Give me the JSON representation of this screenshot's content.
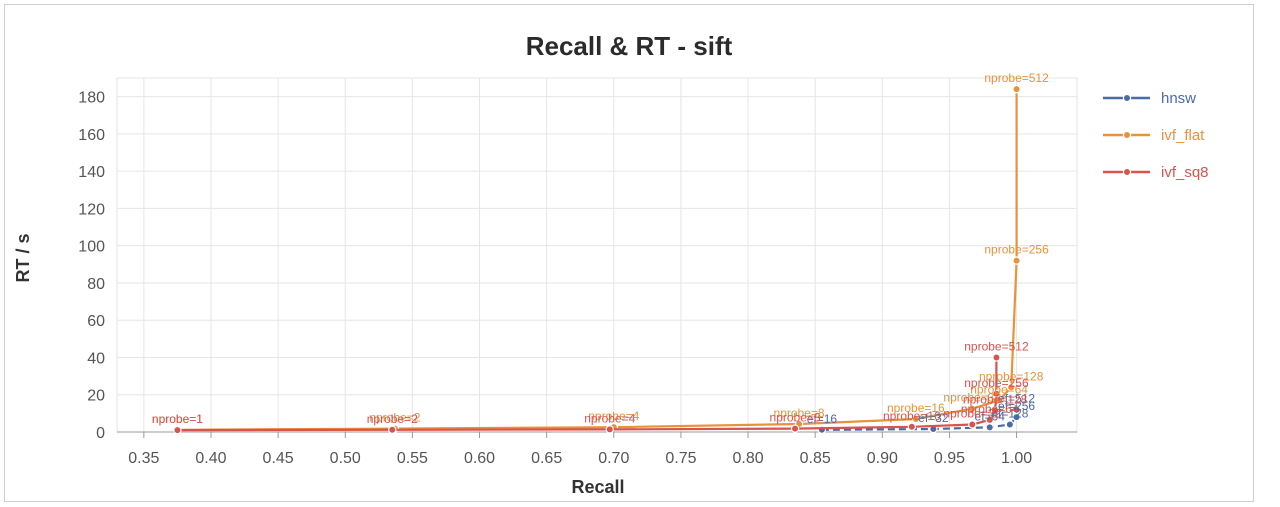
{
  "chart_data": {
    "type": "line",
    "title": "Recall & RT - sift",
    "xlabel": "Recall",
    "ylabel": "RT / s",
    "xlim": [
      0.33,
      1.045
    ],
    "ylim": [
      0,
      190
    ],
    "x_ticks": [
      "0.35",
      "0.40",
      "0.45",
      "0.50",
      "0.55",
      "0.60",
      "0.65",
      "0.70",
      "0.75",
      "0.80",
      "0.85",
      "0.90",
      "0.95",
      "1.00"
    ],
    "y_ticks": [
      "0",
      "20",
      "40",
      "60",
      "80",
      "100",
      "120",
      "140",
      "160",
      "180"
    ],
    "grid": true,
    "legend_position": "right",
    "series": [
      {
        "name": "hnsw",
        "color": "#4a6aa8",
        "dashed": true,
        "points": [
          {
            "x": 0.855,
            "y": 1.2,
            "label": "ef=16"
          },
          {
            "x": 0.938,
            "y": 1.6,
            "label": "ef=32"
          },
          {
            "x": 0.98,
            "y": 2.5,
            "label": "ef=64"
          },
          {
            "x": 0.995,
            "y": 4.0,
            "label": "ef=128"
          },
          {
            "x": 1.0,
            "y": 8.0,
            "label": "ef=256"
          },
          {
            "x": 1.0,
            "y": 12.0,
            "label": "ef=512"
          }
        ]
      },
      {
        "name": "ivf_flat",
        "color": "#e8923a",
        "dashed": false,
        "points": [
          {
            "x": 0.375,
            "y": 1.2,
            "label": "nprobe=1"
          },
          {
            "x": 0.537,
            "y": 1.8,
            "label": "nprobe=2"
          },
          {
            "x": 0.7,
            "y": 2.6,
            "label": "nprobe=4"
          },
          {
            "x": 0.838,
            "y": 4.3,
            "label": "nprobe=8"
          },
          {
            "x": 0.925,
            "y": 7.0,
            "label": "nprobe=16"
          },
          {
            "x": 0.967,
            "y": 12.5,
            "label": "nprobe=32"
          },
          {
            "x": 0.987,
            "y": 17.0,
            "label": "nprobe=64"
          },
          {
            "x": 0.996,
            "y": 24.0,
            "label": "nprobe=128"
          },
          {
            "x": 1.0,
            "y": 92.0,
            "label": "nprobe=256"
          },
          {
            "x": 1.0,
            "y": 184.0,
            "label": "nprobe=512"
          }
        ]
      },
      {
        "name": "ivf_sq8",
        "color": "#d9534f",
        "dashed": false,
        "points": [
          {
            "x": 0.375,
            "y": 1.0,
            "label": "nprobe=1"
          },
          {
            "x": 0.535,
            "y": 1.2,
            "label": "nprobe=2"
          },
          {
            "x": 0.697,
            "y": 1.4,
            "label": "nprobe=4"
          },
          {
            "x": 0.835,
            "y": 1.8,
            "label": "nprobe=8"
          },
          {
            "x": 0.922,
            "y": 2.8,
            "label": "nprobe=16"
          },
          {
            "x": 0.967,
            "y": 4.0,
            "label": "nprobe=32"
          },
          {
            "x": 0.98,
            "y": 6.5,
            "label": "nprobe=64"
          },
          {
            "x": 0.984,
            "y": 11.5,
            "label": "nprobe=128"
          },
          {
            "x": 0.985,
            "y": 20.5,
            "label": "nprobe=256"
          },
          {
            "x": 0.985,
            "y": 40.0,
            "label": "nprobe=512"
          }
        ]
      }
    ]
  }
}
